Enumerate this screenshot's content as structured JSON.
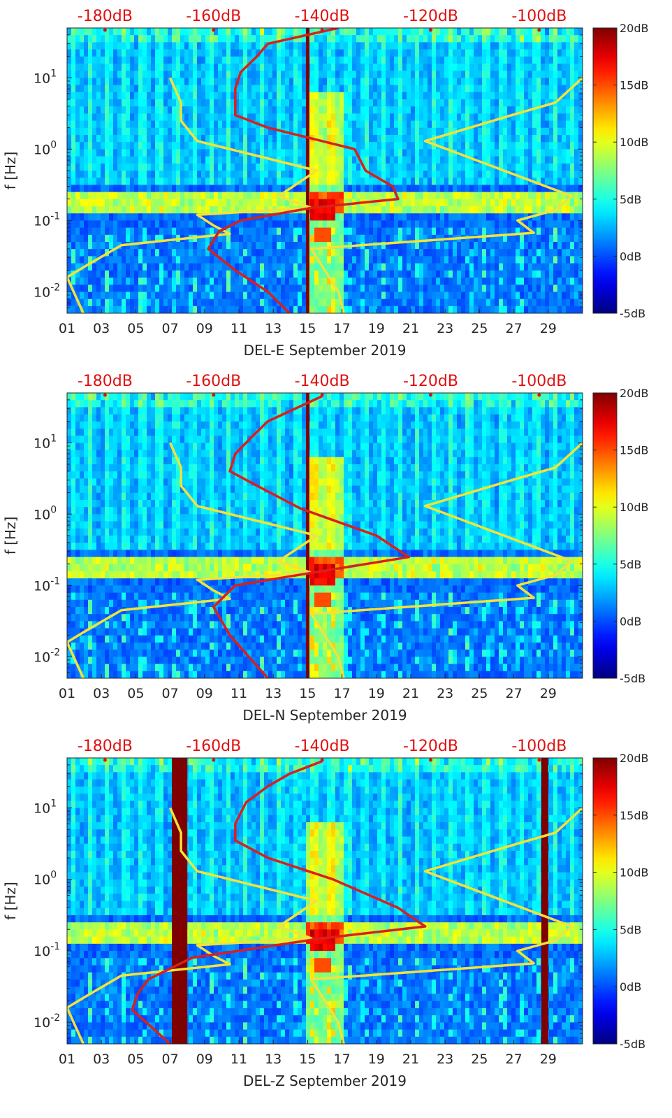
{
  "colors": {
    "model_line": "#f2e33a",
    "psd_line": "#d8201c",
    "top_axis_text": "#e01010",
    "saturation": "#7f0000"
  },
  "chart_data": [
    {
      "type": "heatmap",
      "component": "E",
      "xlabel": "DEL-E September 2019",
      "ylabel": "f [Hz]",
      "x_ticks": [
        "01",
        "03",
        "05",
        "07",
        "09",
        "11",
        "13",
        "15",
        "17",
        "19",
        "21",
        "23",
        "25",
        "27",
        "29"
      ],
      "xlim_days": [
        1,
        31
      ],
      "y_tick_exponents": [
        -2,
        -1,
        0,
        1
      ],
      "ylim_hz": [
        0.005,
        50
      ],
      "top_axis": {
        "labels": [
          "-180dB",
          "-160dB",
          "-140dB",
          "-120dB",
          "-100dB"
        ],
        "values_db": [
          -180,
          -160,
          -140,
          -120,
          -100
        ],
        "range_db": [
          -187,
          -92
        ]
      },
      "colorbar": {
        "labels": [
          "-5dB",
          "0dB",
          "5dB",
          "10dB",
          "15dB",
          "20dB"
        ],
        "range_db": [
          -5,
          20
        ]
      },
      "saturation_bands_days": [
        [
          14.9,
          15.1
        ]
      ],
      "model_noise_curves": [
        {
          "name": "NLNM",
          "points": [
            [
              -168,
              10
            ],
            [
              -166,
              4.5
            ],
            [
              -166,
              2.5
            ],
            [
              -163,
              1.3
            ],
            [
              -141,
              0.5
            ],
            [
              -148,
              0.22
            ],
            [
              -142,
              0.15
            ],
            [
              -163,
              0.12
            ],
            [
              -160,
              0.085
            ],
            [
              -157,
              0.065
            ],
            [
              -177,
              0.045
            ],
            [
              -184,
              0.022
            ],
            [
              -187,
              0.016
            ],
            [
              -184,
              0.005
            ]
          ]
        },
        {
          "name": "NHNM",
          "points": [
            [
              -136,
              0.005
            ],
            [
              -137,
              0.01
            ],
            [
              -142,
              0.04
            ],
            [
              -101,
              0.067
            ],
            [
              -104,
              0.1
            ],
            [
              -97,
              0.14
            ],
            [
              -94,
              0.22
            ],
            [
              -121,
              1.3
            ],
            [
              -105,
              3.0
            ],
            [
              -97,
              4.5
            ],
            [
              -92,
              10
            ]
          ]
        }
      ],
      "psd_curve": {
        "name": "PSD",
        "points": [
          [
            -137,
            50
          ],
          [
            -150,
            30
          ],
          [
            -152,
            20
          ],
          [
            -155,
            12
          ],
          [
            -156,
            7
          ],
          [
            -156,
            3
          ],
          [
            -150,
            2
          ],
          [
            -134,
            1
          ],
          [
            -132,
            0.5
          ],
          [
            -127,
            0.3
          ],
          [
            -126,
            0.2
          ],
          [
            -142,
            0.15
          ],
          [
            -155,
            0.1
          ],
          [
            -159,
            0.07
          ],
          [
            -161,
            0.04
          ],
          [
            -156,
            0.02
          ],
          [
            -150,
            0.01
          ],
          [
            -146,
            0.005
          ]
        ]
      }
    },
    {
      "type": "heatmap",
      "component": "N",
      "xlabel": "DEL-N September 2019",
      "ylabel": "f [Hz]",
      "x_ticks": [
        "01",
        "03",
        "05",
        "07",
        "09",
        "11",
        "13",
        "15",
        "17",
        "19",
        "21",
        "23",
        "25",
        "27",
        "29"
      ],
      "xlim_days": [
        1,
        31
      ],
      "y_tick_exponents": [
        -2,
        -1,
        0,
        1
      ],
      "ylim_hz": [
        0.005,
        50
      ],
      "top_axis": {
        "labels": [
          "-180dB",
          "-160dB",
          "-140dB",
          "-120dB",
          "-100dB"
        ],
        "values_db": [
          -180,
          -160,
          -140,
          -120,
          -100
        ],
        "range_db": [
          -187,
          -92
        ]
      },
      "colorbar": {
        "labels": [
          "-5dB",
          "0dB",
          "5dB",
          "10dB",
          "15dB",
          "20dB"
        ],
        "range_db": [
          -5,
          20
        ]
      },
      "saturation_bands_days": [
        [
          14.9,
          15.1
        ]
      ],
      "model_noise_curves": [
        {
          "name": "NLNM",
          "points": [
            [
              -168,
              10
            ],
            [
              -166,
              4.5
            ],
            [
              -166,
              2.5
            ],
            [
              -163,
              1.3
            ],
            [
              -141,
              0.5
            ],
            [
              -148,
              0.22
            ],
            [
              -142,
              0.15
            ],
            [
              -163,
              0.12
            ],
            [
              -160,
              0.085
            ],
            [
              -157,
              0.065
            ],
            [
              -177,
              0.045
            ],
            [
              -184,
              0.022
            ],
            [
              -187,
              0.016
            ],
            [
              -184,
              0.005
            ]
          ]
        },
        {
          "name": "NHNM",
          "points": [
            [
              -136,
              0.005
            ],
            [
              -137,
              0.01
            ],
            [
              -142,
              0.04
            ],
            [
              -101,
              0.067
            ],
            [
              -104,
              0.1
            ],
            [
              -97,
              0.14
            ],
            [
              -94,
              0.22
            ],
            [
              -121,
              1.3
            ],
            [
              -105,
              3.0
            ],
            [
              -97,
              4.5
            ],
            [
              -92,
              10
            ]
          ]
        }
      ],
      "psd_curve": {
        "name": "PSD",
        "points": [
          [
            -140,
            45
          ],
          [
            -145,
            30
          ],
          [
            -150,
            20
          ],
          [
            -153,
            12
          ],
          [
            -156,
            7
          ],
          [
            -157,
            4
          ],
          [
            -152,
            2.5
          ],
          [
            -144,
            1.2
          ],
          [
            -130,
            0.5
          ],
          [
            -124,
            0.25
          ],
          [
            -142,
            0.15
          ],
          [
            -156,
            0.1
          ],
          [
            -160,
            0.05
          ],
          [
            -157,
            0.02
          ],
          [
            -150,
            0.005
          ]
        ]
      }
    },
    {
      "type": "heatmap",
      "component": "Z",
      "xlabel": "DEL-Z September 2019",
      "ylabel": "f [Hz]",
      "x_ticks": [
        "01",
        "03",
        "05",
        "07",
        "09",
        "11",
        "13",
        "15",
        "17",
        "19",
        "21",
        "23",
        "25",
        "27",
        "29"
      ],
      "xlim_days": [
        1,
        31
      ],
      "y_tick_exponents": [
        -2,
        -1,
        0,
        1
      ],
      "ylim_hz": [
        0.005,
        50
      ],
      "top_axis": {
        "labels": [
          "-180dB",
          "-160dB",
          "-140dB",
          "-120dB",
          "-100dB"
        ],
        "values_db": [
          -180,
          -160,
          -140,
          -120,
          -100
        ],
        "range_db": [
          -187,
          -92
        ]
      },
      "colorbar": {
        "labels": [
          "-5dB",
          "0dB",
          "5dB",
          "10dB",
          "15dB",
          "20dB"
        ],
        "range_db": [
          -5,
          20
        ]
      },
      "saturation_bands_days": [
        [
          7.1,
          8.0
        ],
        [
          28.6,
          29.0
        ]
      ],
      "model_noise_curves": [
        {
          "name": "NLNM",
          "points": [
            [
              -168,
              10
            ],
            [
              -166,
              4.5
            ],
            [
              -166,
              2.5
            ],
            [
              -163,
              1.3
            ],
            [
              -141,
              0.5
            ],
            [
              -148,
              0.22
            ],
            [
              -142,
              0.15
            ],
            [
              -163,
              0.12
            ],
            [
              -160,
              0.085
            ],
            [
              -157,
              0.065
            ],
            [
              -177,
              0.045
            ],
            [
              -184,
              0.022
            ],
            [
              -187,
              0.016
            ],
            [
              -184,
              0.005
            ]
          ]
        },
        {
          "name": "NHNM",
          "points": [
            [
              -136,
              0.005
            ],
            [
              -137,
              0.01
            ],
            [
              -142,
              0.04
            ],
            [
              -101,
              0.067
            ],
            [
              -104,
              0.1
            ],
            [
              -97,
              0.14
            ],
            [
              -94,
              0.22
            ],
            [
              -121,
              1.3
            ],
            [
              -105,
              3.0
            ],
            [
              -97,
              4.5
            ],
            [
              -92,
              10
            ]
          ]
        }
      ],
      "psd_curve": {
        "name": "PSD",
        "points": [
          [
            -140,
            45
          ],
          [
            -146,
            30
          ],
          [
            -150,
            20
          ],
          [
            -154,
            12
          ],
          [
            -156,
            6
          ],
          [
            -156,
            3.5
          ],
          [
            -150,
            2
          ],
          [
            -138,
            1
          ],
          [
            -126,
            0.4
          ],
          [
            -121,
            0.22
          ],
          [
            -140,
            0.15
          ],
          [
            -164,
            0.08
          ],
          [
            -172,
            0.04
          ],
          [
            -174,
            0.025
          ],
          [
            -175,
            0.015
          ],
          [
            -168,
            0.005
          ]
        ]
      }
    }
  ]
}
